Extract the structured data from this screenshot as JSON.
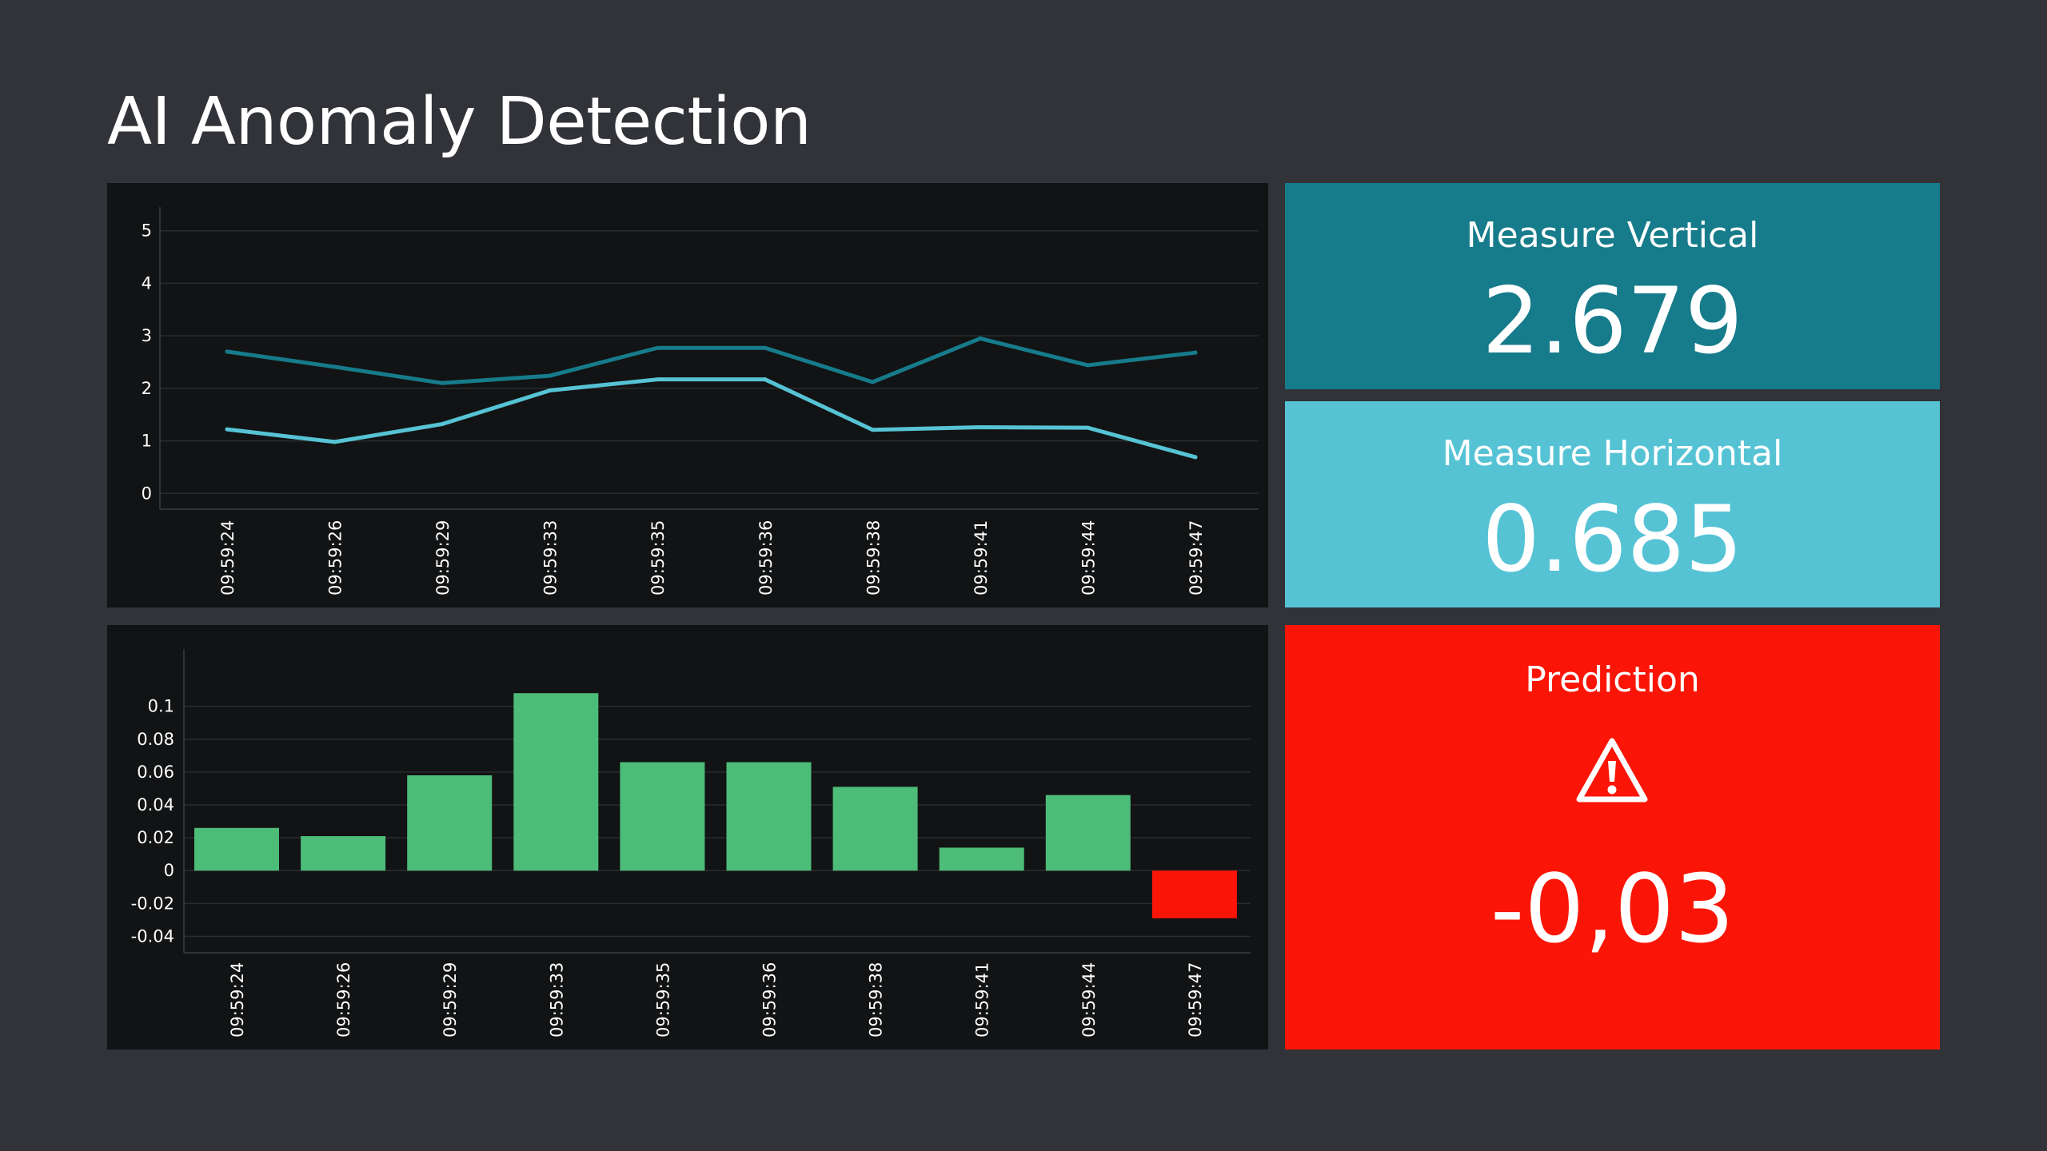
{
  "page_title": "AI Anomaly Detection",
  "colors": {
    "background": "#313338",
    "panel": "#121314",
    "vertical": "#167B8A",
    "horizontal": "#56C3D5",
    "prediction": "#FA1506",
    "bar_positive": "#4CBC78",
    "bar_negative": "#FA1506",
    "grid": "#2A2C2E"
  },
  "tiles": {
    "vertical": {
      "label": "Measure Vertical",
      "value": "2.679"
    },
    "horizontal": {
      "label": "Measure Horizontal",
      "value": "0.685"
    },
    "prediction": {
      "label": "Prediction",
      "value": "-0,03",
      "icon": "warning-icon"
    }
  },
  "chart_data": [
    {
      "type": "line",
      "title": "",
      "x": [
        "09:59:24",
        "09:59:26",
        "09:59:29",
        "09:59:33",
        "09:59:35",
        "09:59:36",
        "09:59:38",
        "09:59:41",
        "09:59:44",
        "09:59:47"
      ],
      "series": [
        {
          "color": "#167B8A",
          "values": [
            2.7,
            2.41,
            2.1,
            2.24,
            2.77,
            2.77,
            2.12,
            2.95,
            2.44,
            2.68
          ]
        },
        {
          "color": "#56C3D5",
          "values": [
            1.22,
            0.98,
            1.32,
            1.96,
            2.17,
            2.17,
            1.21,
            1.26,
            1.25,
            0.69
          ]
        }
      ],
      "yticks": [
        0,
        1,
        2,
        3,
        4,
        5
      ],
      "ylim": [
        -0.3,
        5.3
      ],
      "grid": true,
      "legend": "none"
    },
    {
      "type": "bar",
      "title": "",
      "categories": [
        "09:59:24",
        "09:59:26",
        "09:59:29",
        "09:59:33",
        "09:59:35",
        "09:59:36",
        "09:59:38",
        "09:59:41",
        "09:59:44",
        "09:59:47"
      ],
      "values": [
        0.026,
        0.021,
        0.058,
        0.108,
        0.066,
        0.066,
        0.051,
        0.014,
        0.046,
        -0.029
      ],
      "yticks": [
        -0.04,
        -0.02,
        0,
        0.02,
        0.04,
        0.06,
        0.08,
        0.1
      ],
      "ylim": [
        -0.05,
        0.13
      ],
      "grid": true,
      "legend": "none"
    }
  ]
}
